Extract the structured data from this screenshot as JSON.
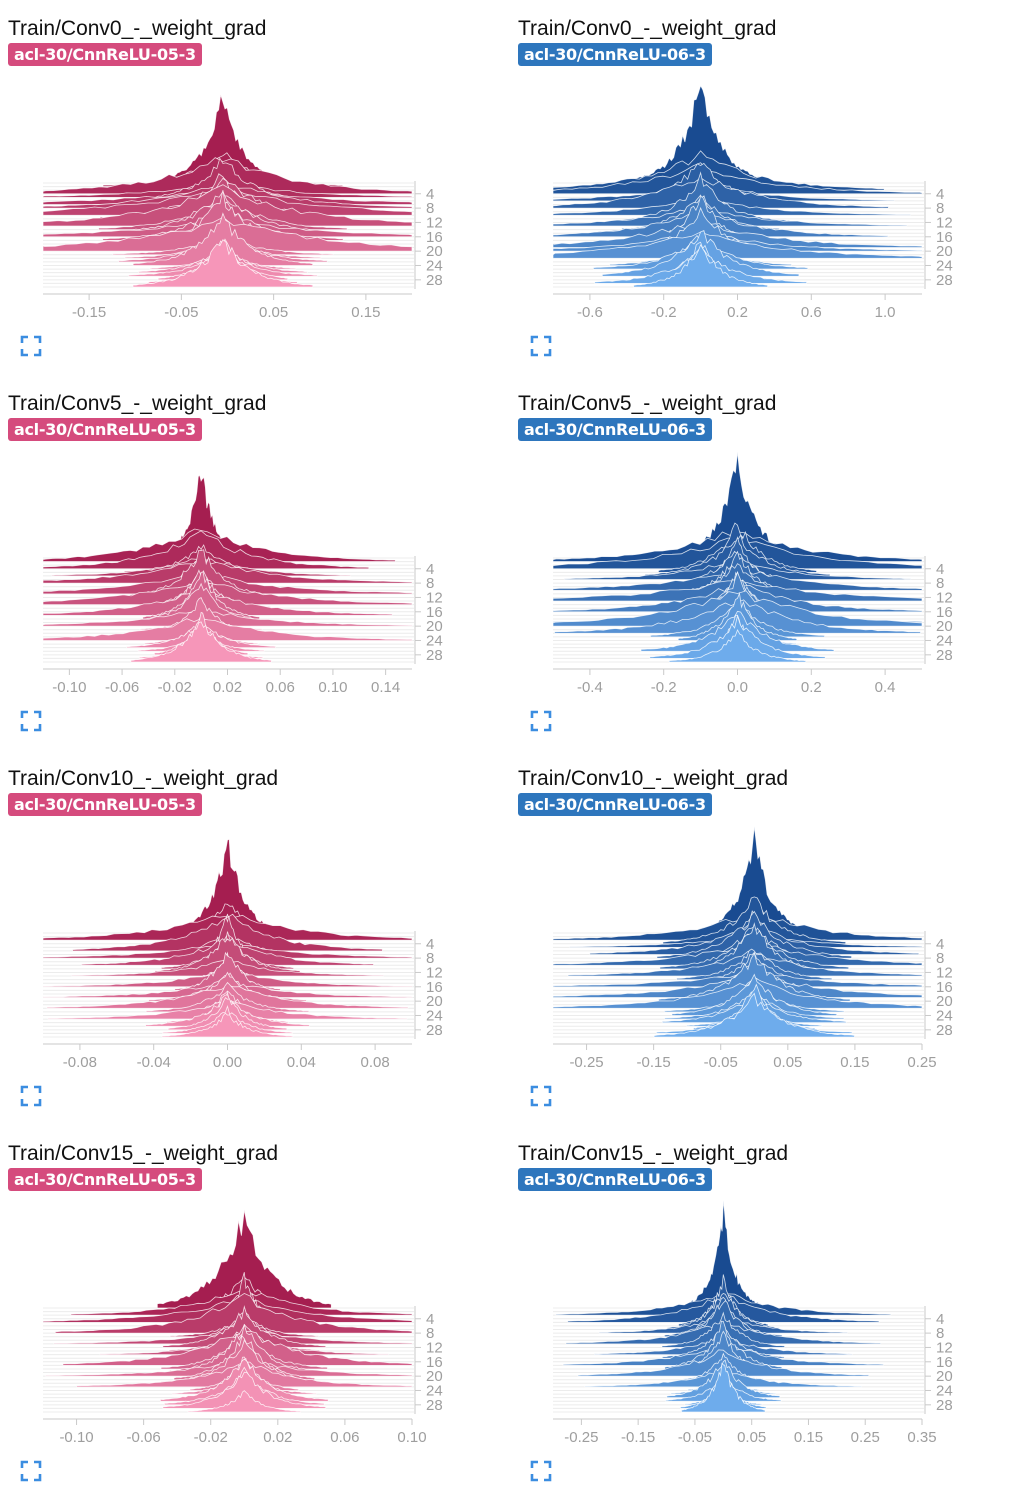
{
  "colors": {
    "pink": {
      "badge": "#d54b7d",
      "dark": [
        165,
        30,
        80
      ],
      "light": [
        246,
        150,
        185
      ],
      "outline": "#ffffff"
    },
    "blue": {
      "badge": "#2e76bd",
      "dark": [
        25,
        75,
        145
      ],
      "light": [
        110,
        172,
        236
      ],
      "outline": "#ffffff"
    },
    "axis": "#c9c9c9",
    "tick_text": "#9e9e9e",
    "guide": "#ececec",
    "expand_icon": "#3b8de0"
  },
  "step_labels": [
    "4",
    "8",
    "12",
    "16",
    "20",
    "24",
    "28"
  ],
  "steps": [
    1,
    2,
    3,
    4,
    5,
    6,
    7,
    8,
    9,
    10,
    11,
    12,
    13,
    14,
    15,
    16,
    17,
    18,
    19,
    20,
    21,
    22,
    23,
    24,
    25,
    26,
    27,
    28,
    29,
    30
  ],
  "panels": [
    {
      "title": "Train/Conv0_-_weight_grad",
      "run": "acl-30/CnnReLU-05-3",
      "color": "pink",
      "icon": "fullscreen-icon",
      "chart_data": {
        "type": "histogram-ridgeline",
        "x_range": [
          -0.2,
          0.2
        ],
        "x_ticks": [
          "-0.15",
          "-0.05",
          "0.05",
          "0.15"
        ],
        "center": -0.005,
        "peak_height": 0.82,
        "base_width": 0.018,
        "tail_width": 0.1,
        "wide_steps": [
          4,
          5,
          7,
          8,
          10,
          13,
          16,
          20
        ]
      }
    },
    {
      "title": "Train/Conv0_-_weight_grad",
      "run": "acl-30/CnnReLU-06-3",
      "color": "blue",
      "icon": "fullscreen-icon",
      "chart_data": {
        "type": "histogram-ridgeline",
        "x_range": [
          -0.8,
          1.2
        ],
        "x_ticks": [
          "-0.6",
          "-0.2",
          "0.2",
          "0.6",
          "1.0"
        ],
        "center": 0.0,
        "peak_height": 0.95,
        "base_width": 0.08,
        "tail_width": 0.45,
        "wide_steps": [
          3,
          4,
          6,
          8,
          10,
          13,
          16,
          19,
          20,
          22
        ]
      }
    },
    {
      "title": "Train/Conv5_-_weight_grad",
      "run": "acl-30/CnnReLU-05-3",
      "color": "pink",
      "icon": "fullscreen-icon",
      "chart_data": {
        "type": "histogram-ridgeline",
        "x_range": [
          -0.12,
          0.16
        ],
        "x_ticks": [
          "-0.10",
          "-0.06",
          "-0.02",
          "0.02",
          "0.06",
          "0.10",
          "0.14"
        ],
        "center": 0.0,
        "peak_height": 0.85,
        "base_width": 0.008,
        "tail_width": 0.05,
        "wide_steps": [
          2,
          4,
          6,
          8,
          11,
          14,
          17,
          20,
          24
        ]
      }
    },
    {
      "title": "Train/Conv5_-_weight_grad",
      "run": "acl-30/CnnReLU-06-3",
      "color": "blue",
      "icon": "fullscreen-icon",
      "chart_data": {
        "type": "histogram-ridgeline",
        "x_range": [
          -0.5,
          0.5
        ],
        "x_ticks": [
          "-0.4",
          "-0.2",
          "0.0",
          "0.2",
          "0.4"
        ],
        "center": 0.0,
        "peak_height": 0.92,
        "base_width": 0.035,
        "tail_width": 0.22,
        "wide_steps": [
          2,
          4,
          7,
          10,
          13,
          16,
          19,
          20,
          22
        ]
      }
    },
    {
      "title": "Train/Conv10_-_weight_grad",
      "run": "acl-30/CnnReLU-05-3",
      "color": "pink",
      "icon": "fullscreen-icon",
      "chart_data": {
        "type": "histogram-ridgeline",
        "x_range": [
          -0.1,
          0.1
        ],
        "x_ticks": [
          "-0.08",
          "-0.04",
          "0.00",
          "0.04",
          "0.08"
        ],
        "center": 0.0,
        "peak_height": 0.9,
        "base_width": 0.006,
        "tail_width": 0.035,
        "wide_steps": [
          3,
          6,
          8,
          10,
          13,
          16,
          19,
          22,
          25
        ]
      }
    },
    {
      "title": "Train/Conv10_-_weight_grad",
      "run": "acl-30/CnnReLU-06-3",
      "color": "blue",
      "icon": "fullscreen-icon",
      "chart_data": {
        "type": "histogram-ridgeline",
        "x_range": [
          -0.3,
          0.25
        ],
        "x_ticks": [
          "-0.25",
          "-0.15",
          "-0.05",
          "0.05",
          "0.15",
          "0.25"
        ],
        "center": 0.0,
        "peak_height": 0.9,
        "base_width": 0.02,
        "tail_width": 0.11,
        "wide_steps": [
          3,
          5,
          7,
          10,
          13,
          16,
          19,
          22
        ]
      }
    },
    {
      "title": "Train/Conv15_-_weight_grad",
      "run": "acl-30/CnnReLU-05-3",
      "color": "pink",
      "icon": "fullscreen-icon",
      "chart_data": {
        "type": "histogram-ridgeline",
        "x_range": [
          -0.12,
          0.1
        ],
        "x_ticks": [
          "-0.10",
          "-0.06",
          "-0.02",
          "0.02",
          "0.06",
          "0.10"
        ],
        "center": 0.0,
        "peak_height": 0.9,
        "base_width": 0.007,
        "tail_width": 0.035,
        "wide_steps": [
          3,
          5,
          8,
          11,
          14,
          17,
          20,
          23
        ]
      }
    },
    {
      "title": "Train/Conv15_-_weight_grad",
      "run": "acl-30/CnnReLU-06-3",
      "color": "blue",
      "icon": "fullscreen-icon",
      "chart_data": {
        "type": "histogram-ridgeline",
        "x_range": [
          -0.3,
          0.35
        ],
        "x_ticks": [
          "-0.25",
          "-0.15",
          "-0.05",
          "0.05",
          "0.15",
          "0.25",
          "0.35"
        ],
        "center": 0.0,
        "peak_height": 0.95,
        "base_width": 0.015,
        "tail_width": 0.1,
        "wide_steps": [
          3,
          5,
          8,
          11,
          14,
          17,
          20,
          23
        ]
      }
    }
  ]
}
